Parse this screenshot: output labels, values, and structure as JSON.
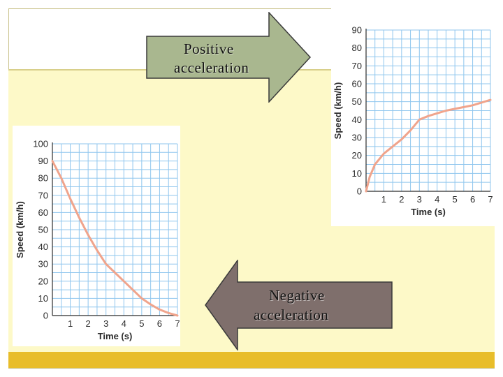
{
  "colors": {
    "panel": "#fdf9c8",
    "bottom_bar": "#e8bd2a",
    "grid": "#8fc6ee",
    "curve": "#f0a48c",
    "positive_arrow": "#a9b78f",
    "negative_arrow": "#7f6f6c"
  },
  "arrows": {
    "positive": {
      "line1": "Positive",
      "line2": "acceleration",
      "direction": "right"
    },
    "negative": {
      "line1": "Negative",
      "line2": "acceleration",
      "direction": "left"
    }
  },
  "chart_data": [
    {
      "type": "line",
      "id": "positive",
      "xlabel": "Time (s)",
      "ylabel": "Speed (km/h)",
      "xlim": [
        0,
        7
      ],
      "ylim": [
        0,
        90
      ],
      "xticks": [
        "1",
        "2",
        "3",
        "4",
        "5",
        "6",
        "7"
      ],
      "yticks": [
        "0",
        "10",
        "20",
        "30",
        "40",
        "50",
        "60",
        "70",
        "80",
        "90"
      ],
      "grid": true,
      "series": [
        {
          "x": [
            0,
            0.2,
            0.5,
            1,
            1.5,
            2,
            2.5,
            3,
            3.5,
            4,
            4.5,
            5,
            5.5,
            6,
            6.5,
            7
          ],
          "y": [
            0,
            8,
            15,
            21,
            25,
            29,
            34,
            40,
            42,
            43.5,
            45,
            46,
            47,
            48,
            49.5,
            51
          ]
        }
      ]
    },
    {
      "type": "line",
      "id": "negative",
      "xlabel": "Time (s)",
      "ylabel": "Speed (km/h)",
      "xlim": [
        0,
        7
      ],
      "ylim": [
        0,
        100
      ],
      "xticks": [
        "1",
        "2",
        "3",
        "4",
        "5",
        "6",
        "7"
      ],
      "yticks": [
        "0",
        "10",
        "20",
        "30",
        "40",
        "50",
        "60",
        "70",
        "80",
        "90",
        "100"
      ],
      "grid": true,
      "series": [
        {
          "x": [
            0,
            0.5,
            1,
            1.5,
            2,
            2.5,
            3,
            3.5,
            4,
            4.5,
            5,
            5.5,
            6,
            6.5,
            7
          ],
          "y": [
            90,
            80,
            68,
            57,
            47,
            38,
            30,
            25,
            20,
            15,
            10,
            6.5,
            3.5,
            1.5,
            0
          ]
        }
      ]
    }
  ]
}
